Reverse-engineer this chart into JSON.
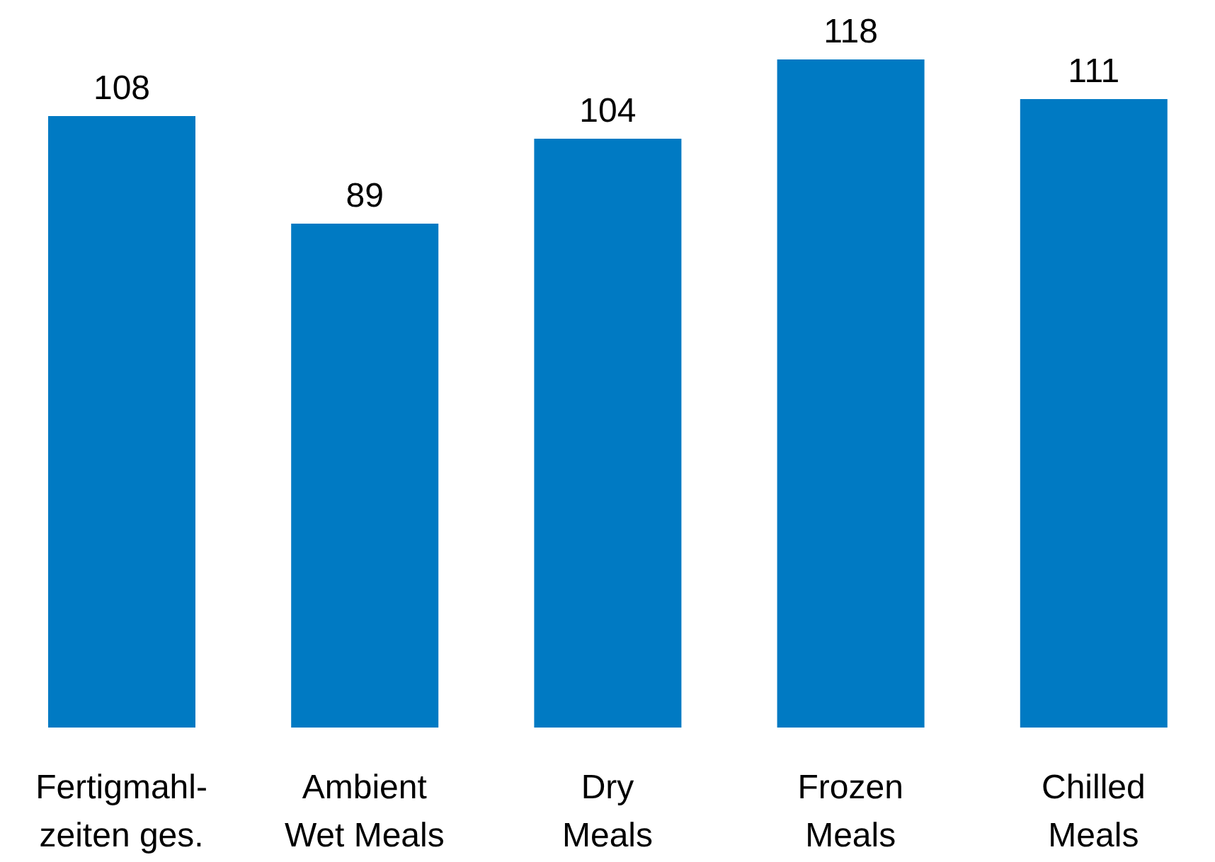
{
  "chart_data": {
    "type": "bar",
    "categories": [
      "Fertigmahl-\nzeiten ges.",
      "Ambient\nWet Meals",
      "Dry\nMeals",
      "Frozen\nMeals",
      "Chilled\nMeals"
    ],
    "values": [
      108,
      89,
      104,
      118,
      111
    ],
    "color": "#007ac3",
    "data_labels": true,
    "grid": false,
    "legend": false
  }
}
